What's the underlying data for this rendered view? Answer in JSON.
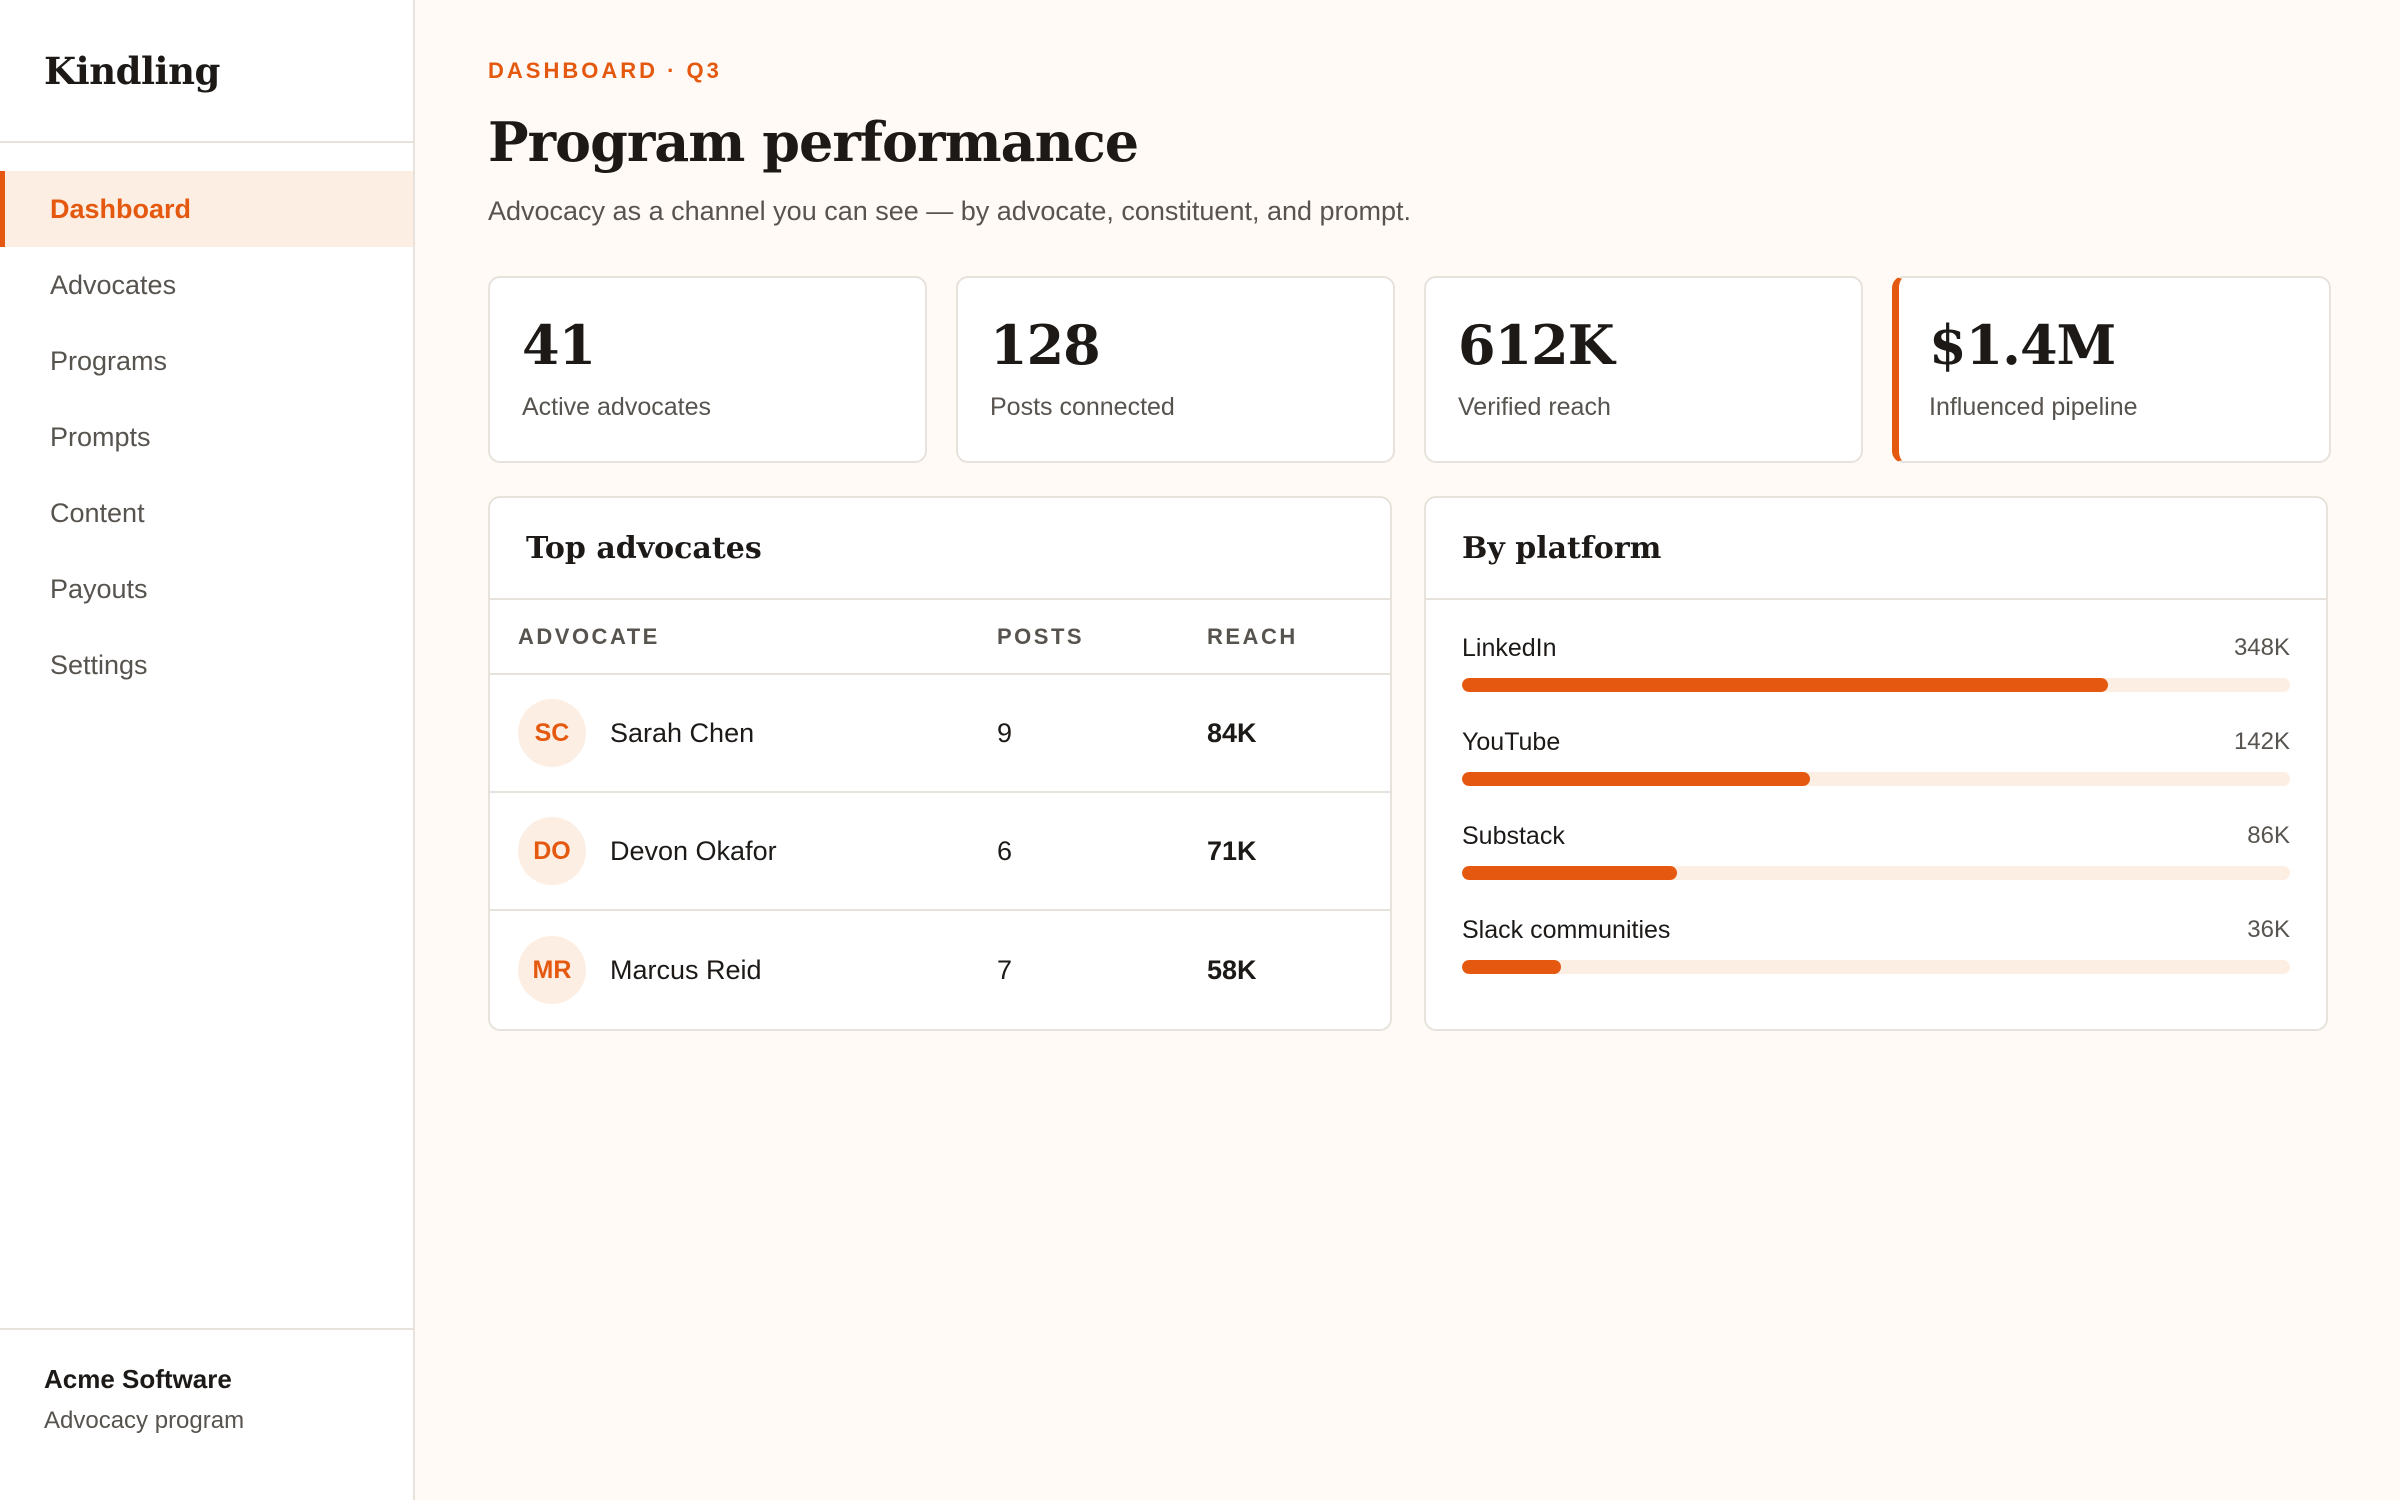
{
  "brand": {
    "name": "Kindling"
  },
  "nav": {
    "items": [
      {
        "label": "Dashboard",
        "active": true
      },
      {
        "label": "Advocates"
      },
      {
        "label": "Programs"
      },
      {
        "label": "Prompts"
      },
      {
        "label": "Content"
      },
      {
        "label": "Payouts"
      },
      {
        "label": "Settings"
      }
    ]
  },
  "org": {
    "name": "Acme Software",
    "subtitle": "Advocacy program"
  },
  "header": {
    "eyebrow": "DASHBOARD · Q3",
    "title": "Program performance",
    "subtitle": "Advocacy as a channel you can see — by advocate, constituent, and prompt."
  },
  "stats": [
    {
      "value": "41",
      "label": "Active advocates"
    },
    {
      "value": "128",
      "label": "Posts connected"
    },
    {
      "value": "612K",
      "label": "Verified reach"
    },
    {
      "value": "$1.4M",
      "label": "Influenced pipeline"
    }
  ],
  "top_advocates": {
    "title": "Top advocates",
    "columns": {
      "advocate": "ADVOCATE",
      "posts": "POSTS",
      "reach": "REACH"
    },
    "rows": [
      {
        "initials": "SC",
        "name": "Sarah Chen",
        "posts": "9",
        "reach": "84K"
      },
      {
        "initials": "DO",
        "name": "Devon Okafor",
        "posts": "6",
        "reach": "71K"
      },
      {
        "initials": "MR",
        "name": "Marcus Reid",
        "posts": "7",
        "reach": "58K"
      }
    ]
  },
  "by_platform": {
    "title": "By platform",
    "items": [
      {
        "name": "LinkedIn",
        "value": "348K",
        "fraction": 0.78
      },
      {
        "name": "YouTube",
        "value": "142K",
        "fraction": 0.42
      },
      {
        "name": "Substack",
        "value": "86K",
        "fraction": 0.26
      },
      {
        "name": "Slack communities",
        "value": "36K",
        "fraction": 0.12
      }
    ]
  },
  "colors": {
    "accent": "#e4590f",
    "accent_soft": "#fdeee3",
    "background": "#fffaf5"
  }
}
